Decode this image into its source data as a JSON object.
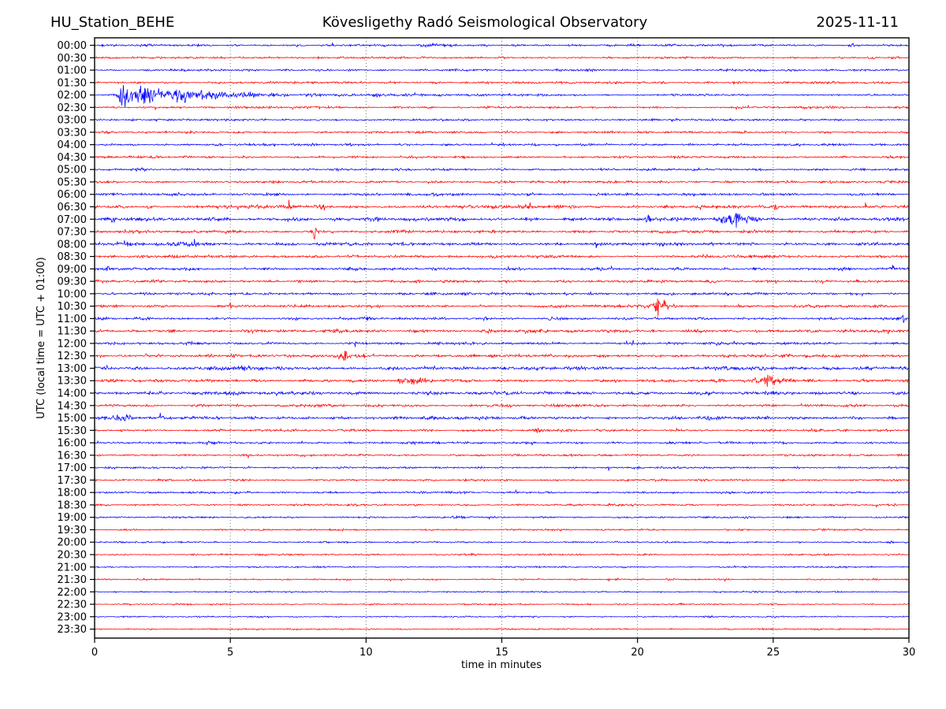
{
  "header": {
    "station": "HU_Station_BEHE",
    "observatory": "Kövesligethy Radó Seismological Observatory",
    "date": "2025-11-11"
  },
  "chart_data": {
    "type": "line",
    "subtype": "helicorder-seismogram",
    "title": "Kövesligethy Radó Seismological Observatory",
    "station": "HU_Station_BEHE",
    "date": "2025-11-11",
    "xlabel": "time in minutes",
    "ylabel": "UTC (local time = UTC + 01:00)",
    "x_range": [
      0,
      30
    ],
    "x_ticks": [
      0,
      5,
      10,
      15,
      20,
      25,
      30
    ],
    "grid_x": [
      5,
      10,
      15,
      20,
      25
    ],
    "grid_style": "dotted-vertical",
    "legend": "none",
    "trace_colors": {
      "b": "#0000ff",
      "r": "#ff0000"
    },
    "row_minutes_span": 30,
    "events_format": "[start_time_min, amplitude_px, rise_or_sigma_min, decay_min(0=spike)]",
    "rows": [
      {
        "label": "00:00",
        "color": "b",
        "noise": 1.6,
        "events": [
          [
            12.8,
            1.6,
            0.4,
            0
          ]
        ]
      },
      {
        "label": "00:30",
        "color": "r",
        "noise": 1.5,
        "events": []
      },
      {
        "label": "01:00",
        "color": "b",
        "noise": 1.5,
        "events": []
      },
      {
        "label": "01:30",
        "color": "r",
        "noise": 1.6,
        "events": []
      },
      {
        "label": "02:00",
        "color": "b",
        "noise": 1.2,
        "events": [
          [
            1.05,
            18,
            0.1,
            0.55
          ],
          [
            1.1,
            8,
            0.15,
            2.2
          ],
          [
            1.2,
            5,
            0.3,
            6.0
          ]
        ]
      },
      {
        "label": "02:30",
        "color": "r",
        "noise": 1.6,
        "events": []
      },
      {
        "label": "03:00",
        "color": "b",
        "noise": 1.5,
        "events": []
      },
      {
        "label": "03:30",
        "color": "r",
        "noise": 1.5,
        "events": [
          [
            2.6,
            2,
            0.04,
            0
          ]
        ]
      },
      {
        "label": "04:00",
        "color": "b",
        "noise": 1.7,
        "events": []
      },
      {
        "label": "04:30",
        "color": "r",
        "noise": 1.6,
        "events": []
      },
      {
        "label": "05:00",
        "color": "b",
        "noise": 1.6,
        "events": []
      },
      {
        "label": "05:30",
        "color": "r",
        "noise": 1.7,
        "events": []
      },
      {
        "label": "06:00",
        "color": "b",
        "noise": 1.9,
        "events": []
      },
      {
        "label": "06:30",
        "color": "r",
        "noise": 2.3,
        "events": [
          [
            2.0,
            4,
            0.04,
            0
          ],
          [
            5.3,
            3,
            0.04,
            0
          ],
          [
            8.4,
            4,
            0.05,
            0
          ],
          [
            10.6,
            3,
            0.04,
            0
          ],
          [
            17.6,
            4,
            0.05,
            0
          ],
          [
            22.3,
            4,
            0.04,
            0
          ],
          [
            25.1,
            3,
            0.04,
            0
          ],
          [
            28.4,
            4,
            0.04,
            0
          ]
        ]
      },
      {
        "label": "07:00",
        "color": "b",
        "noise": 2.5,
        "events": [
          [
            0.6,
            5,
            0.04,
            0
          ],
          [
            20.4,
            6,
            0.05,
            0
          ],
          [
            23.5,
            6,
            0.45,
            0
          ],
          [
            23.8,
            4,
            0.3,
            0
          ],
          [
            25.3,
            3,
            0.05,
            0
          ]
        ]
      },
      {
        "label": "07:30",
        "color": "r",
        "noise": 2.0,
        "events": [
          [
            1.1,
            3,
            0.04,
            0
          ],
          [
            8.1,
            8,
            0.04,
            0
          ]
        ]
      },
      {
        "label": "08:00",
        "color": "b",
        "noise": 2.3,
        "events": [
          [
            1.0,
            2,
            0.3,
            0
          ],
          [
            3.35,
            7,
            0.18,
            0
          ]
        ]
      },
      {
        "label": "08:30",
        "color": "r",
        "noise": 2.0,
        "events": [
          [
            28.2,
            3,
            0.05,
            0
          ]
        ]
      },
      {
        "label": "09:00",
        "color": "b",
        "noise": 1.9,
        "events": [
          [
            0.5,
            4,
            0.04,
            0
          ],
          [
            5.0,
            2.5,
            0.05,
            0
          ],
          [
            7.5,
            3.5,
            0.04,
            0
          ],
          [
            13.6,
            3.5,
            0.08,
            0
          ],
          [
            15.2,
            4,
            0.05,
            0
          ],
          [
            19.0,
            3.5,
            0.04,
            0
          ],
          [
            24.3,
            2.5,
            0.05,
            0
          ],
          [
            29.4,
            4.5,
            0.04,
            0
          ]
        ]
      },
      {
        "label": "09:30",
        "color": "r",
        "noise": 1.9,
        "events": [
          [
            25.6,
            2.5,
            0.05,
            0
          ]
        ]
      },
      {
        "label": "10:00",
        "color": "b",
        "noise": 1.9,
        "events": []
      },
      {
        "label": "10:30",
        "color": "r",
        "noise": 1.9,
        "events": [
          [
            1.4,
            5,
            0.04,
            0
          ],
          [
            2.6,
            3.5,
            0.04,
            0
          ],
          [
            5.0,
            6,
            0.04,
            0
          ],
          [
            10.5,
            3.5,
            0.04,
            0
          ],
          [
            20.7,
            7,
            0.4,
            0
          ],
          [
            20.75,
            16,
            0.05,
            0
          ]
        ]
      },
      {
        "label": "11:00",
        "color": "b",
        "noise": 1.8,
        "events": [
          [
            10.1,
            2.5,
            0.04,
            0
          ],
          [
            14.4,
            6,
            0.04,
            0
          ],
          [
            16.8,
            3.5,
            0.04,
            0
          ],
          [
            20.6,
            2.5,
            0.04,
            0
          ],
          [
            29.8,
            4.5,
            0.04,
            0
          ]
        ]
      },
      {
        "label": "11:30",
        "color": "r",
        "noise": 2.1,
        "events": [
          [
            14.3,
            3.5,
            0.25,
            0
          ],
          [
            24.4,
            5,
            0.04,
            0
          ]
        ]
      },
      {
        "label": "12:00",
        "color": "b",
        "noise": 1.8,
        "events": [
          [
            1.65,
            8,
            0.04,
            0
          ],
          [
            9.6,
            2.5,
            0.04,
            0
          ],
          [
            19.6,
            2.5,
            0.04,
            0
          ]
        ]
      },
      {
        "label": "12:30",
        "color": "r",
        "noise": 2.1,
        "events": [
          [
            1.9,
            3.5,
            0.05,
            0
          ],
          [
            9.35,
            5,
            0.3,
            0
          ],
          [
            23.2,
            2.5,
            0.05,
            0
          ]
        ]
      },
      {
        "label": "13:00",
        "color": "b",
        "noise": 2.6,
        "events": []
      },
      {
        "label": "13:30",
        "color": "r",
        "noise": 2.1,
        "events": [
          [
            11.75,
            5,
            0.3,
            0
          ],
          [
            25.0,
            7,
            0.45,
            0
          ],
          [
            27.3,
            2.5,
            0.05,
            0
          ]
        ]
      },
      {
        "label": "14:00",
        "color": "b",
        "noise": 2.4,
        "events": []
      },
      {
        "label": "14:30",
        "color": "r",
        "noise": 1.9,
        "events": []
      },
      {
        "label": "15:00",
        "color": "b",
        "noise": 2.2,
        "events": [
          [
            0.9,
            4,
            0.35,
            0
          ]
        ]
      },
      {
        "label": "15:30",
        "color": "r",
        "noise": 1.7,
        "events": [
          [
            16.3,
            4.5,
            0.04,
            0
          ]
        ]
      },
      {
        "label": "16:00",
        "color": "b",
        "noise": 1.6,
        "events": []
      },
      {
        "label": "16:30",
        "color": "r",
        "noise": 1.5,
        "events": []
      },
      {
        "label": "17:00",
        "color": "b",
        "noise": 1.4,
        "events": []
      },
      {
        "label": "17:30",
        "color": "r",
        "noise": 1.4,
        "events": []
      },
      {
        "label": "18:00",
        "color": "b",
        "noise": 1.5,
        "events": []
      },
      {
        "label": "18:30",
        "color": "r",
        "noise": 1.4,
        "events": [
          [
            28.8,
            3,
            0.04,
            0
          ]
        ]
      },
      {
        "label": "19:00",
        "color": "b",
        "noise": 1.3,
        "events": []
      },
      {
        "label": "19:30",
        "color": "r",
        "noise": 1.2,
        "events": []
      },
      {
        "label": "20:00",
        "color": "b",
        "noise": 1.2,
        "events": []
      },
      {
        "label": "20:30",
        "color": "r",
        "noise": 1.2,
        "events": []
      },
      {
        "label": "21:00",
        "color": "b",
        "noise": 1.1,
        "events": []
      },
      {
        "label": "21:30",
        "color": "r",
        "noise": 1.1,
        "events": []
      },
      {
        "label": "22:00",
        "color": "b",
        "noise": 1.1,
        "events": []
      },
      {
        "label": "22:30",
        "color": "r",
        "noise": 1.1,
        "events": []
      },
      {
        "label": "23:00",
        "color": "b",
        "noise": 1.1,
        "events": []
      },
      {
        "label": "23:30",
        "color": "r",
        "noise": 1.1,
        "events": []
      }
    ]
  }
}
